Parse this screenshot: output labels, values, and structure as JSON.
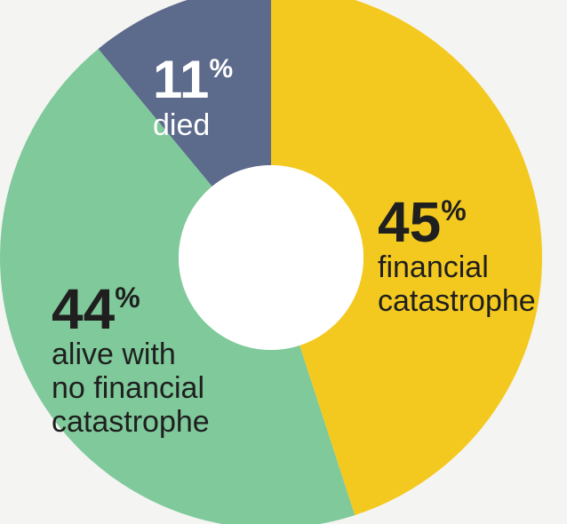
{
  "chart_data": {
    "type": "pie",
    "donut": true,
    "slices": [
      {
        "value": 45,
        "pct_label": "45",
        "pct_sign": "%",
        "label_lines": [
          "financial",
          "catastrophe"
        ],
        "color": "#f4c91f",
        "text_color": "#1f1f1f"
      },
      {
        "value": 44,
        "pct_label": "44",
        "pct_sign": "%",
        "label_lines": [
          "alive with",
          "no financial",
          "catastrophe"
        ],
        "color": "#7fc99a",
        "text_color": "#1f1f1f"
      },
      {
        "value": 11,
        "pct_label": "11",
        "pct_sign": "%",
        "label_lines": [
          "died"
        ],
        "color": "#5c6a8c",
        "text_color": "#ffffff"
      }
    ],
    "background": "#f4f4f2",
    "hole_color": "#ffffff"
  }
}
